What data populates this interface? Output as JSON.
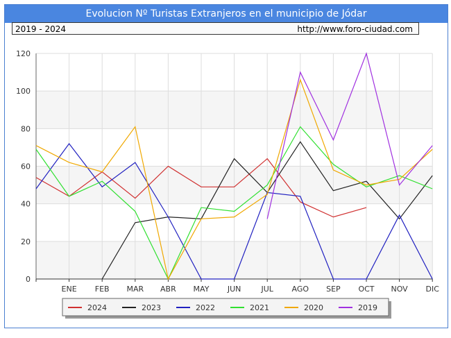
{
  "title": "Evolucion Nº Turistas Extranjeros en el municipio de Jódar",
  "subtitle_left": "2019 - 2024",
  "subtitle_right": "http://www.foro-ciudad.com",
  "chart_data": {
    "type": "line",
    "categories": [
      "",
      "ENE",
      "FEB",
      "MAR",
      "ABR",
      "MAY",
      "JUN",
      "JUL",
      "AGO",
      "SEP",
      "OCT",
      "NOV",
      "DIC"
    ],
    "ylim": [
      0,
      120
    ],
    "yticks": [
      0,
      20,
      40,
      60,
      80,
      100,
      120
    ],
    "grid": true,
    "legend": "bottom",
    "series": [
      {
        "name": "2024",
        "color": "#d03030",
        "values": [
          54,
          44,
          57,
          43,
          60,
          49,
          49,
          64,
          41,
          33,
          38,
          null,
          null
        ]
      },
      {
        "name": "2023",
        "color": "#222222",
        "values": [
          null,
          null,
          0,
          30,
          33,
          32,
          64,
          46,
          73,
          47,
          52,
          32,
          55
        ]
      },
      {
        "name": "2022",
        "color": "#2020c0",
        "values": [
          48,
          72,
          49,
          62,
          33,
          0,
          0,
          46,
          44,
          0,
          0,
          34,
          0
        ]
      },
      {
        "name": "2021",
        "color": "#30e030",
        "values": [
          69,
          44,
          52,
          36,
          0,
          38,
          36,
          50,
          81,
          61,
          49,
          55,
          48
        ]
      },
      {
        "name": "2020",
        "color": "#f0a800",
        "values": [
          71,
          62,
          57,
          81,
          0,
          32,
          33,
          45,
          106,
          58,
          50,
          53,
          69
        ]
      },
      {
        "name": "2019",
        "color": "#a030e0",
        "values": [
          null,
          null,
          null,
          null,
          null,
          null,
          null,
          32,
          110,
          74,
          120,
          50,
          71
        ]
      }
    ]
  }
}
